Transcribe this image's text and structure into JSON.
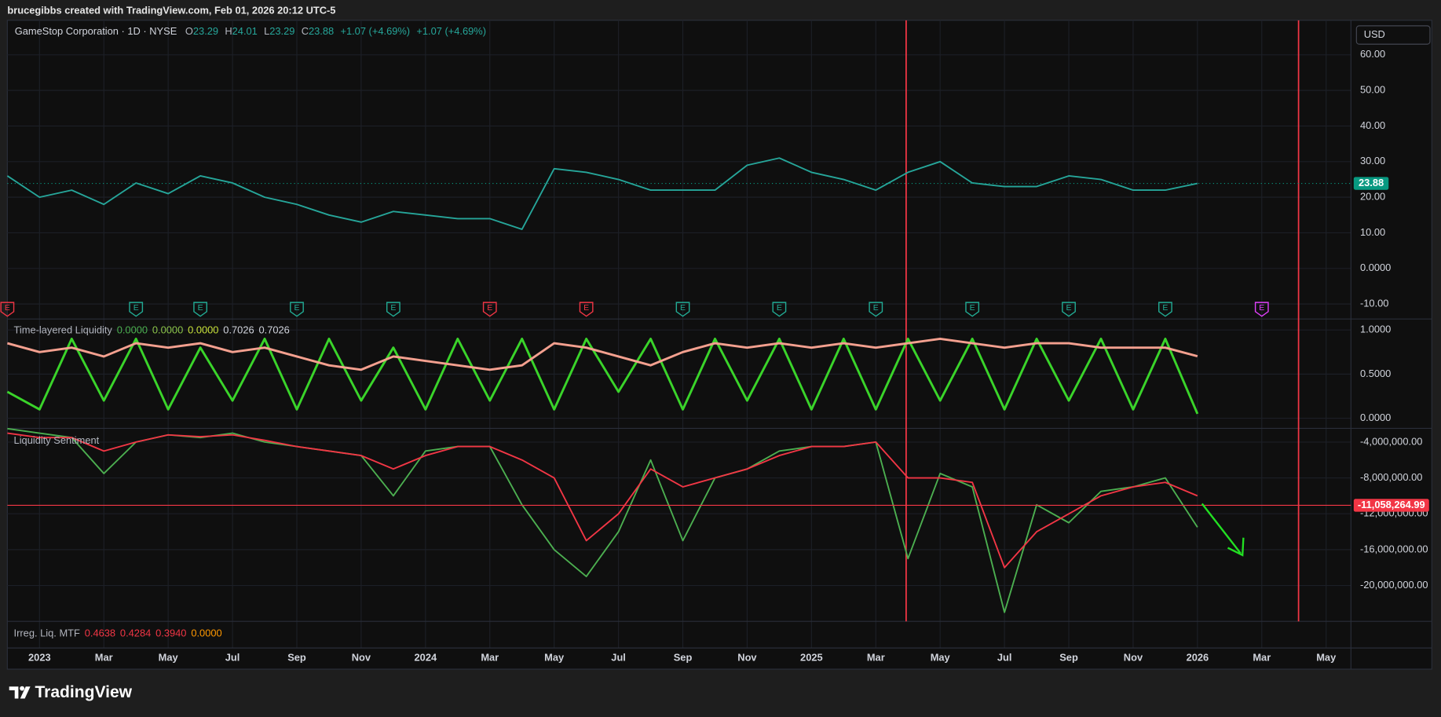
{
  "header": {
    "text": "brucegibbs created with TradingView.com, Feb 01, 2026 20:12 UTC-5"
  },
  "footer": {
    "logo": "TradingView"
  },
  "currency": "USD",
  "chart_data": [
    {
      "type": "line",
      "symbol": "GameStop Corporation · 1D · NYSE",
      "ohlc": [
        {
          "label": "O",
          "value": "23.29"
        },
        {
          "label": "H",
          "value": "24.01"
        },
        {
          "label": "L",
          "value": "23.29"
        },
        {
          "label": "C",
          "value": "23.88"
        }
      ],
      "changes": [
        "+1.07 (+4.69%)",
        "+1.07 (+4.69%)"
      ],
      "x": [
        "2022-12",
        "2023-01",
        "2023-02",
        "2023-03",
        "2023-04",
        "2023-05",
        "2023-06",
        "2023-07",
        "2023-08",
        "2023-09",
        "2023-10",
        "2023-11",
        "2023-12",
        "2024-01",
        "2024-02",
        "2024-03",
        "2024-04",
        "2024-05",
        "2024-06",
        "2024-07",
        "2024-08",
        "2024-09",
        "2024-10",
        "2024-11",
        "2024-12",
        "2025-01",
        "2025-02",
        "2025-03",
        "2025-04",
        "2025-05",
        "2025-06",
        "2025-07",
        "2025-08",
        "2025-09",
        "2025-10",
        "2025-11",
        "2025-12",
        "2026-01"
      ],
      "series": [
        {
          "color": "#26a69a",
          "values": [
            26,
            20,
            22,
            18,
            24,
            21,
            26,
            24,
            20,
            18,
            15,
            13,
            16,
            15,
            14,
            14,
            11,
            28,
            27,
            25,
            22,
            22,
            22,
            29,
            31,
            27,
            25,
            22,
            27,
            30,
            24,
            23,
            23,
            26,
            25,
            22,
            22,
            23.88
          ]
        }
      ],
      "last_price": 23.88,
      "last_color": "#089981",
      "xlim": [
        "2022-12",
        "2026-06"
      ],
      "xticks": [
        {
          "value": "2023-01",
          "label": "2023"
        },
        {
          "value": "2023-03",
          "label": "Mar"
        },
        {
          "value": "2023-05",
          "label": "May"
        },
        {
          "value": "2023-07",
          "label": "Jul"
        },
        {
          "value": "2023-09",
          "label": "Sep"
        },
        {
          "value": "2023-11",
          "label": "Nov"
        },
        {
          "value": "2024-01",
          "label": "2024"
        },
        {
          "value": "2024-03",
          "label": "Mar"
        },
        {
          "value": "2024-05",
          "label": "May"
        },
        {
          "value": "2024-07",
          "label": "Jul"
        },
        {
          "value": "2024-09",
          "label": "Sep"
        },
        {
          "value": "2024-11",
          "label": "Nov"
        },
        {
          "value": "2025-01",
          "label": "2025"
        },
        {
          "value": "2025-03",
          "label": "Mar"
        },
        {
          "value": "2025-05",
          "label": "May"
        },
        {
          "value": "2025-07",
          "label": "Jul"
        },
        {
          "value": "2025-09",
          "label": "Sep"
        },
        {
          "value": "2025-11",
          "label": "Nov"
        },
        {
          "value": "2026-01",
          "label": "2026"
        },
        {
          "value": "2026-03",
          "label": "Mar"
        },
        {
          "value": "2026-05",
          "label": "May"
        }
      ],
      "ylim": [
        -14.2,
        69.7
      ],
      "yticks": [
        {
          "value": 60,
          "label": "60.00"
        },
        {
          "value": 50,
          "label": "50.00"
        },
        {
          "value": 40,
          "label": "40.00"
        },
        {
          "value": 30,
          "label": "30.00"
        },
        {
          "value": 20,
          "label": "20.00"
        },
        {
          "value": 10,
          "label": "10.00"
        },
        {
          "value": 0,
          "label": "0.0000"
        },
        {
          "value": -10,
          "label": "-10.00"
        }
      ],
      "events": [
        {
          "x": "2022-12",
          "label": "E",
          "color": "#f23645"
        },
        {
          "x": "2023-04",
          "label": "E",
          "color": "#22ab94"
        },
        {
          "x": "2023-06",
          "label": "E",
          "color": "#22ab94"
        },
        {
          "x": "2023-09",
          "label": "E",
          "color": "#22ab94"
        },
        {
          "x": "2023-12",
          "label": "E",
          "color": "#22ab94"
        },
        {
          "x": "2024-03",
          "label": "E",
          "color": "#f23645"
        },
        {
          "x": "2024-06",
          "label": "E",
          "color": "#f23645"
        },
        {
          "x": "2024-09",
          "label": "E",
          "color": "#22ab94"
        },
        {
          "x": "2024-12",
          "label": "E",
          "color": "#22ab94"
        },
        {
          "x": "2025-03",
          "label": "E",
          "color": "#22ab94"
        },
        {
          "x": "2025-06",
          "label": "E",
          "color": "#22ab94"
        },
        {
          "x": "2025-09",
          "label": "E",
          "color": "#22ab94"
        },
        {
          "x": "2025-12",
          "label": "E",
          "color": "#22ab94"
        },
        {
          "x": "2026-03",
          "label": "E",
          "color": "#e040fb"
        }
      ]
    },
    {
      "type": "line",
      "title": "Time-layered Liquidity",
      "legend_values": [
        "0.0000",
        "0.0000",
        "0.0000",
        "0.7026",
        "0.7026"
      ],
      "legend_colors": [
        "#4caf50",
        "#8bc34a",
        "#c6e03a",
        "#d1d4dc",
        "#d1d4dc"
      ],
      "x": [
        "2022-12",
        "2023-01",
        "2023-02",
        "2023-03",
        "2023-04",
        "2023-05",
        "2023-06",
        "2023-07",
        "2023-08",
        "2023-09",
        "2023-10",
        "2023-11",
        "2023-12",
        "2024-01",
        "2024-02",
        "2024-03",
        "2024-04",
        "2024-05",
        "2024-06",
        "2024-07",
        "2024-08",
        "2024-09",
        "2024-10",
        "2024-11",
        "2024-12",
        "2025-01",
        "2025-02",
        "2025-03",
        "2025-04",
        "2025-05",
        "2025-06",
        "2025-07",
        "2025-08",
        "2025-09",
        "2025-10",
        "2025-11",
        "2025-12",
        "2026-01"
      ],
      "series": [
        {
          "color": "#3ad42a",
          "values": [
            0.3,
            0.1,
            0.9,
            0.2,
            0.9,
            0.1,
            0.8,
            0.2,
            0.9,
            0.1,
            0.9,
            0.2,
            0.8,
            0.1,
            0.9,
            0.2,
            0.9,
            0.1,
            0.9,
            0.3,
            0.9,
            0.1,
            0.9,
            0.2,
            0.9,
            0.1,
            0.9,
            0.1,
            0.9,
            0.2,
            0.9,
            0.1,
            0.9,
            0.2,
            0.9,
            0.1,
            0.9,
            0.05
          ]
        },
        {
          "color": "#f4a08f",
          "values": [
            0.85,
            0.75,
            0.8,
            0.7,
            0.85,
            0.8,
            0.85,
            0.75,
            0.8,
            0.7,
            0.6,
            0.55,
            0.7,
            0.65,
            0.6,
            0.55,
            0.6,
            0.85,
            0.8,
            0.7,
            0.6,
            0.75,
            0.85,
            0.8,
            0.85,
            0.8,
            0.85,
            0.8,
            0.85,
            0.9,
            0.85,
            0.8,
            0.85,
            0.85,
            0.8,
            0.8,
            0.8,
            0.7026
          ]
        }
      ],
      "ylim": [
        -0.115,
        1.125
      ],
      "yticks": [
        {
          "value": 1,
          "label": "1.0000"
        },
        {
          "value": 0.5,
          "label": "0.5000"
        },
        {
          "value": 0,
          "label": "0.0000"
        }
      ]
    },
    {
      "type": "line",
      "title": "Liquidity Sentiment",
      "x": [
        "2022-12",
        "2023-01",
        "2023-02",
        "2023-03",
        "2023-04",
        "2023-05",
        "2023-06",
        "2023-07",
        "2023-08",
        "2023-09",
        "2023-10",
        "2023-11",
        "2023-12",
        "2024-01",
        "2024-02",
        "2024-03",
        "2024-04",
        "2024-05",
        "2024-06",
        "2024-07",
        "2024-08",
        "2024-09",
        "2024-10",
        "2024-11",
        "2024-12",
        "2025-01",
        "2025-02",
        "2025-03",
        "2025-04",
        "2025-05",
        "2025-06",
        "2025-07",
        "2025-08",
        "2025-09",
        "2025-10",
        "2025-11",
        "2025-12",
        "2026-01"
      ],
      "series": [
        {
          "color": "#4caf50",
          "values": [
            -2500000,
            -3000000,
            -3500000,
            -7500000,
            -4000000,
            -3200000,
            -3500000,
            -3000000,
            -4000000,
            -4500000,
            -5000000,
            -5500000,
            -10000000,
            -5000000,
            -4500000,
            -4500000,
            -11000000,
            -16000000,
            -19000000,
            -14000000,
            -6000000,
            -15000000,
            -8000000,
            -7000000,
            -5000000,
            -4500000,
            -4500000,
            -4000000,
            -17000000,
            -7500000,
            -9000000,
            -23000000,
            -11000000,
            -13000000,
            -9500000,
            -9000000,
            -8000000,
            -13500000
          ]
        },
        {
          "color": "#f23645",
          "values": [
            -3000000,
            -3500000,
            -3500000,
            -5000000,
            -4000000,
            -3200000,
            -3400000,
            -3200000,
            -3800000,
            -4500000,
            -5000000,
            -5500000,
            -7000000,
            -5500000,
            -4500000,
            -4500000,
            -6000000,
            -8000000,
            -15000000,
            -12000000,
            -7000000,
            -9000000,
            -8000000,
            -7000000,
            -5500000,
            -4500000,
            -4500000,
            -4000000,
            -8000000,
            -8000000,
            -8500000,
            -18000000,
            -14000000,
            -12000000,
            -10000000,
            -9000000,
            -8500000,
            -10000000
          ]
        }
      ],
      "hline": {
        "value": -11058264.99,
        "label": "-11,058,264.99",
        "color": "#f23645"
      },
      "ylim": [
        -24000000,
        -2470000
      ],
      "yticks": [
        {
          "value": -4000000,
          "label": "-4,000,000.00"
        },
        {
          "value": -8000000,
          "label": "-8,000,000.00"
        },
        {
          "value": -12000000,
          "label": "-12,000,000.00"
        },
        {
          "value": -16000000,
          "label": "-16,000,000.00"
        },
        {
          "value": -20000000,
          "label": "-20,000,000.00"
        }
      ]
    },
    {
      "type": "indicator",
      "title": "Irreg. Liq. MTF",
      "legend_values": [
        "0.4638",
        "0.4284",
        "0.3940",
        "0.0000"
      ],
      "legend_colors": [
        "#f23645",
        "#f23645",
        "#f23645",
        "#ff9800"
      ]
    }
  ]
}
